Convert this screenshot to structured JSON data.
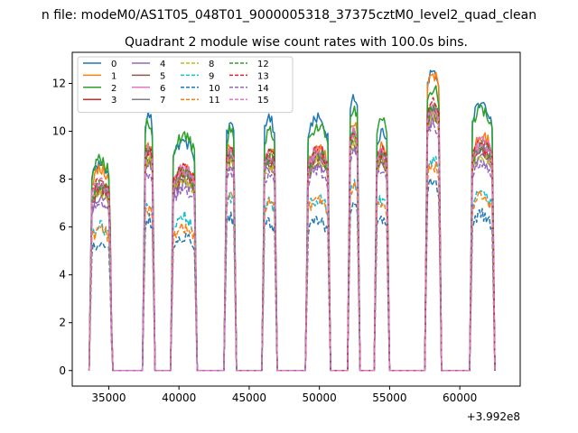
{
  "chart_data": {
    "type": "line",
    "suptitle": "n file: modeM0/AS1T05_048T01_9000005318_37375cztM0_level2_quad_clean",
    "title": "Quadrant 2 module wise count rates with 100.0s bins.",
    "xlabel": "",
    "ylabel": "",
    "offset_text": "+3.992e8",
    "xlim": [
      32400,
      64300
    ],
    "ylim": [
      -0.65,
      13.3
    ],
    "xticks": [
      35000,
      40000,
      45000,
      50000,
      55000,
      60000
    ],
    "yticks": [
      0,
      2,
      4,
      6,
      8,
      10,
      12
    ],
    "grid": false,
    "legend": {
      "placement": "upper-left",
      "columns": 4
    },
    "bin_seconds": 100,
    "on_intervals": [
      [
        33600,
        35250
      ],
      [
        37400,
        38300
      ],
      [
        39400,
        41300
      ],
      [
        43200,
        44100
      ],
      [
        45900,
        47000
      ],
      [
        49000,
        50800
      ],
      [
        52000,
        52900
      ],
      [
        53900,
        55000
      ],
      [
        57500,
        58700
      ],
      [
        60700,
        62500
      ]
    ],
    "series": [
      {
        "name": "0",
        "color": "#1f77b4",
        "dash": "solid",
        "levels": [
          8.6,
          10.6,
          9.6,
          10.3,
          10.5,
          10.5,
          11.4,
          10.0,
          12.6,
          11.2
        ]
      },
      {
        "name": "1",
        "color": "#ff7f0e",
        "dash": "solid",
        "levels": [
          8.4,
          9.4,
          8.4,
          9.3,
          9.2,
          9.3,
          10.3,
          9.4,
          12.4,
          9.8
        ]
      },
      {
        "name": "2",
        "color": "#2ca02c",
        "dash": "solid",
        "levels": [
          8.8,
          10.4,
          9.8,
          10.0,
          10.0,
          10.2,
          11.0,
          10.5,
          11.8,
          10.9
        ]
      },
      {
        "name": "3",
        "color": "#d62728",
        "dash": "solid",
        "levels": [
          7.6,
          9.0,
          8.1,
          9.0,
          8.9,
          9.0,
          9.8,
          9.0,
          11.0,
          9.3
        ]
      },
      {
        "name": "4",
        "color": "#9467bd",
        "dash": "solid",
        "levels": [
          7.3,
          8.6,
          7.8,
          8.7,
          8.6,
          8.7,
          9.4,
          8.7,
          10.6,
          9.0
        ]
      },
      {
        "name": "5",
        "color": "#8c564b",
        "dash": "solid",
        "levels": [
          7.5,
          8.8,
          8.0,
          8.8,
          8.7,
          8.8,
          9.6,
          8.8,
          10.8,
          9.2
        ]
      },
      {
        "name": "6",
        "color": "#e377c2",
        "dash": "solid",
        "levels": [
          7.9,
          9.2,
          8.4,
          9.1,
          9.0,
          9.2,
          10.0,
          9.2,
          11.2,
          9.6
        ]
      },
      {
        "name": "7",
        "color": "#7f7f7f",
        "dash": "solid",
        "levels": [
          7.7,
          9.0,
          8.2,
          9.0,
          8.9,
          9.0,
          9.8,
          9.0,
          11.0,
          9.4
        ]
      },
      {
        "name": "8",
        "color": "#bcbd22",
        "dash": "dashed",
        "levels": [
          7.4,
          8.8,
          8.0,
          8.8,
          8.6,
          8.8,
          9.5,
          8.8,
          10.7,
          9.0
        ]
      },
      {
        "name": "9",
        "color": "#17becf",
        "dash": "dashed",
        "levels": [
          6.0,
          7.0,
          6.4,
          7.2,
          7.0,
          7.2,
          7.8,
          7.1,
          8.8,
          7.4
        ]
      },
      {
        "name": "10",
        "color": "#1f77b4",
        "dash": "dashed",
        "levels": [
          5.4,
          6.3,
          5.6,
          6.4,
          6.2,
          6.3,
          7.0,
          6.3,
          7.9,
          6.5
        ]
      },
      {
        "name": "11",
        "color": "#ff7f0e",
        "dash": "dashed",
        "levels": [
          5.9,
          6.8,
          6.0,
          7.2,
          7.0,
          7.2,
          7.7,
          7.0,
          8.6,
          7.3
        ]
      },
      {
        "name": "12",
        "color": "#2ca02c",
        "dash": "dashed",
        "levels": [
          7.8,
          9.1,
          8.3,
          9.1,
          9.0,
          9.1,
          9.9,
          9.1,
          11.1,
          9.5
        ]
      },
      {
        "name": "13",
        "color": "#d62728",
        "dash": "dashed",
        "levels": [
          7.9,
          9.2,
          8.5,
          9.2,
          9.1,
          9.2,
          10.0,
          9.2,
          11.3,
          9.6
        ]
      },
      {
        "name": "14",
        "color": "#9467bd",
        "dash": "dashed",
        "levels": [
          7.1,
          8.3,
          7.6,
          8.4,
          8.3,
          8.4,
          9.1,
          8.4,
          10.3,
          8.7
        ]
      },
      {
        "name": "15",
        "color": "#e377c2",
        "dash": "dashed",
        "levels": [
          7.8,
          9.1,
          8.3,
          9.1,
          9.0,
          9.1,
          9.9,
          9.1,
          11.0,
          9.5
        ]
      }
    ]
  }
}
